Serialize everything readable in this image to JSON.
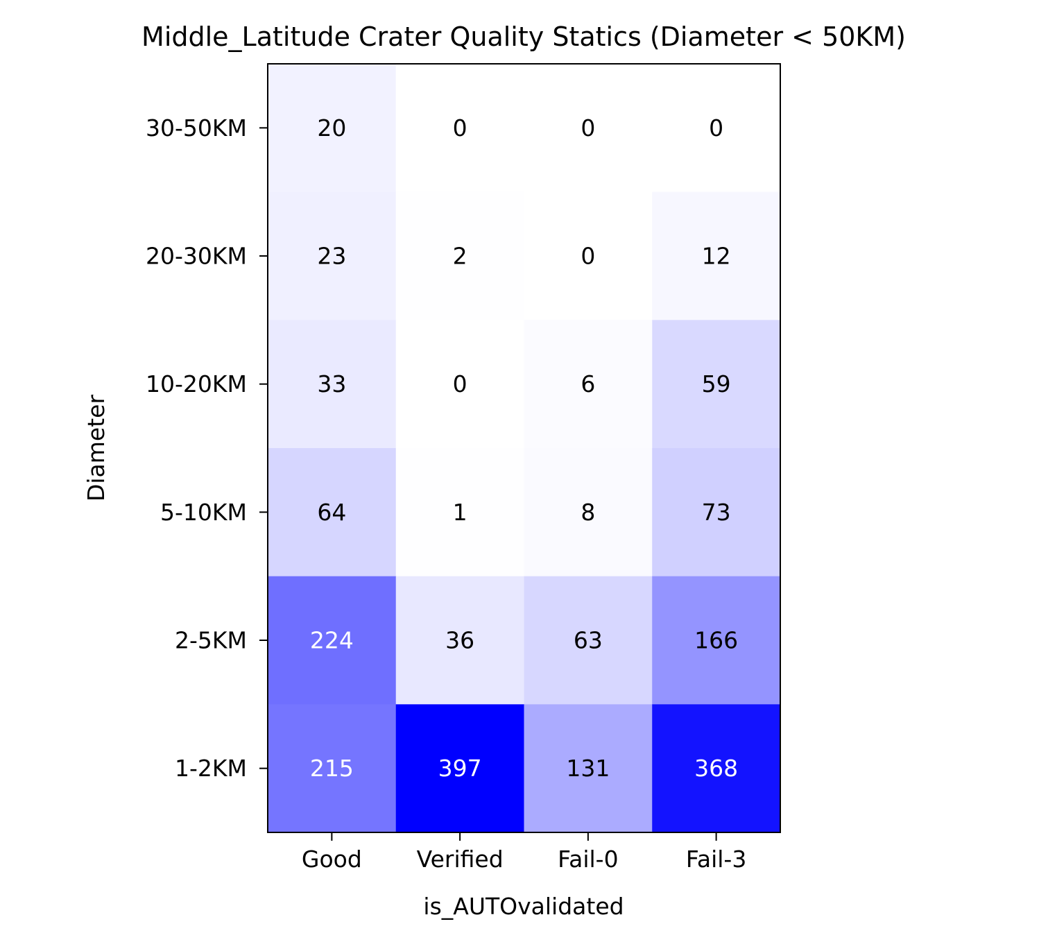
{
  "chart_data": {
    "type": "heatmap",
    "title": "Middle_Latitude Crater Quality Statics (Diameter < 50KM)",
    "xlabel": "is_AUTOvalidated",
    "ylabel": "Diameter",
    "x_categories": [
      "Good",
      "Verified",
      "Fail-0",
      "Fail-3"
    ],
    "y_categories": [
      "30-50KM",
      "20-30KM",
      "10-20KM",
      "5-10KM",
      "2-5KM",
      "1-2KM"
    ],
    "values": [
      [
        20,
        0,
        0,
        0
      ],
      [
        23,
        2,
        0,
        12
      ],
      [
        33,
        0,
        6,
        59
      ],
      [
        64,
        1,
        8,
        73
      ],
      [
        224,
        36,
        63,
        166
      ],
      [
        215,
        397,
        131,
        368
      ]
    ],
    "colormap": {
      "low": "#ffffff",
      "high": "#0000ff"
    },
    "value_range": [
      0,
      397
    ],
    "colorbar": false,
    "grid": false
  }
}
